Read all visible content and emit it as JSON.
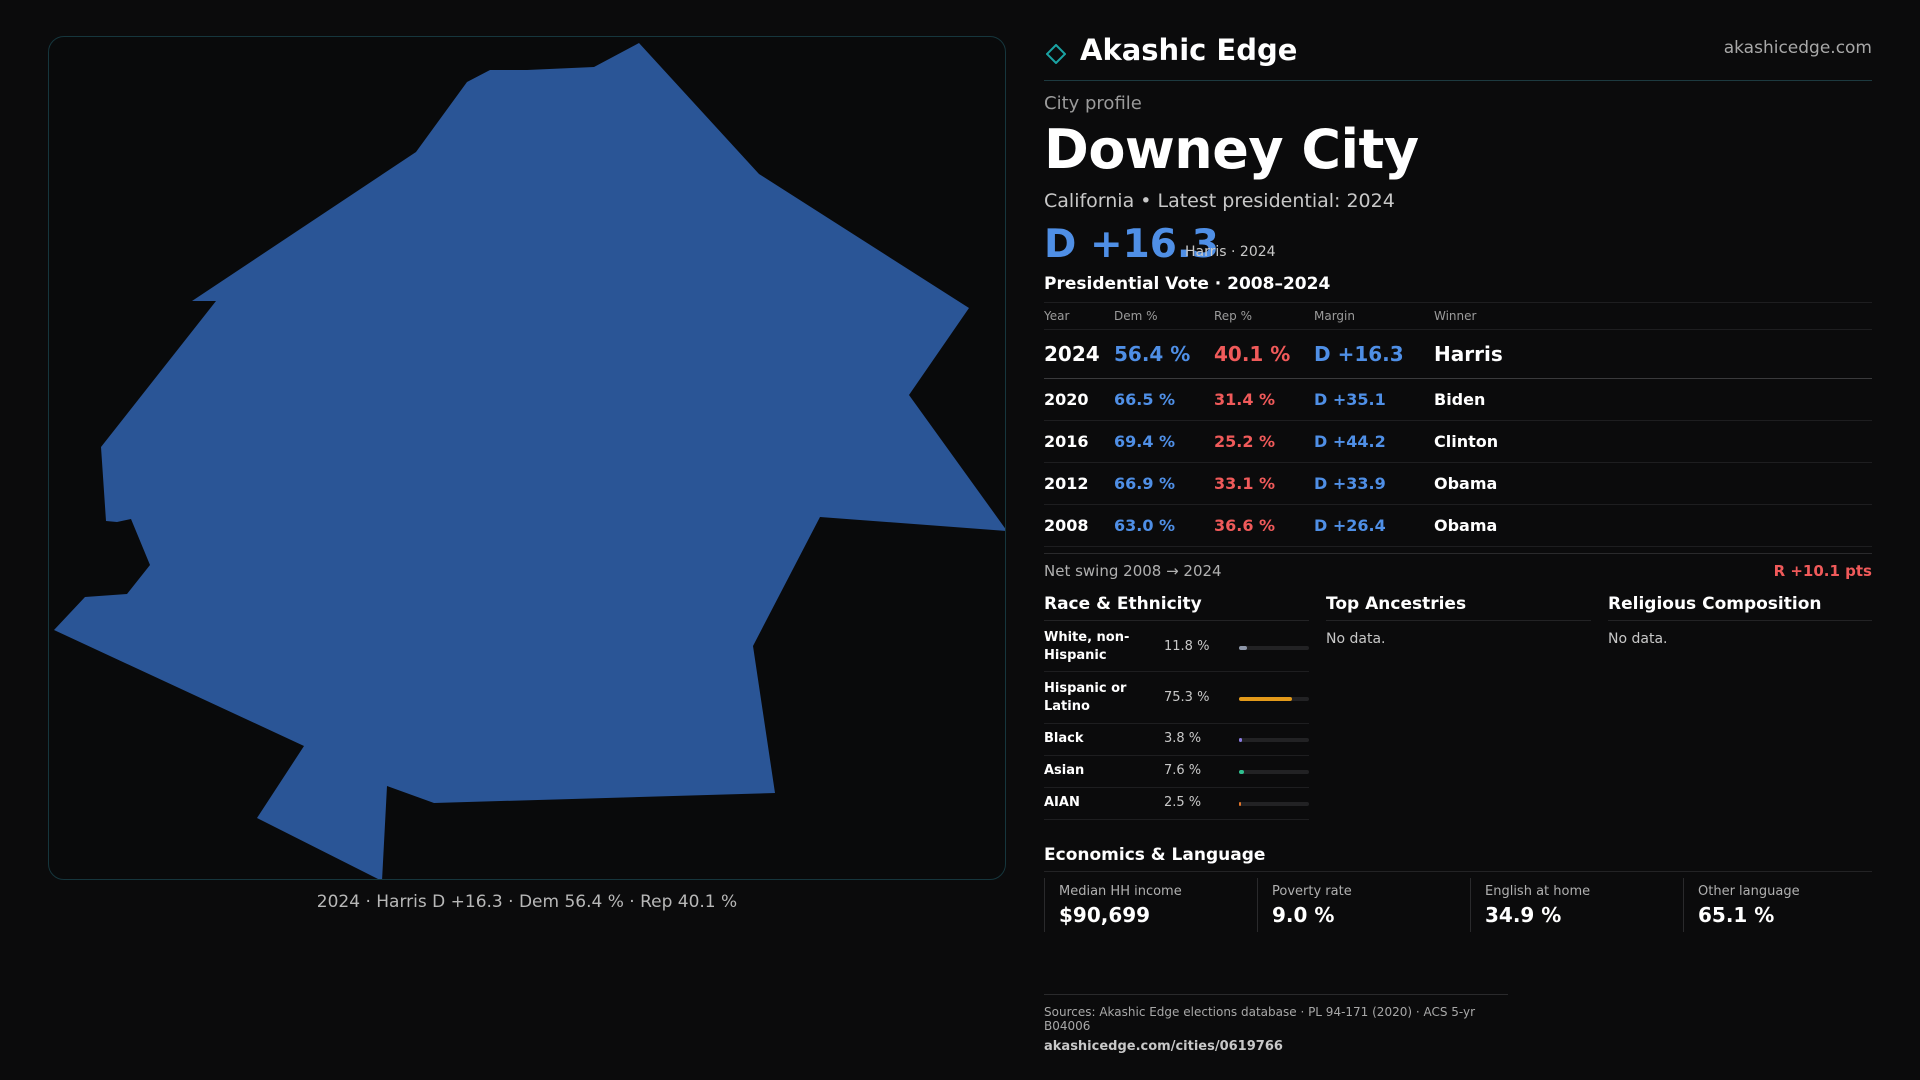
{
  "brand": {
    "name": "Akashic Edge",
    "site": "akashicedge.com"
  },
  "profile": {
    "kicker": "City profile",
    "title": "Downey City",
    "subtitle": "California • Latest presidential: 2024",
    "headline_margin": "D +16.3",
    "headline_note": "Harris · 2024"
  },
  "map": {
    "fill_color": "#2a5596",
    "caption": "2024 · Harris D +16.3 · Dem 56.4 % · Rep 40.1 %"
  },
  "votes": {
    "title": "Presidential Vote · 2008–2024",
    "headers": [
      "Year",
      "Dem %",
      "Rep %",
      "Margin",
      "Winner"
    ],
    "rows": [
      {
        "year": "2024",
        "dem": "56.4 %",
        "rep": "40.1 %",
        "margin": "D +16.3",
        "winner": "Harris"
      },
      {
        "year": "2020",
        "dem": "66.5 %",
        "rep": "31.4 %",
        "margin": "D +35.1",
        "winner": "Biden"
      },
      {
        "year": "2016",
        "dem": "69.4 %",
        "rep": "25.2 %",
        "margin": "D +44.2",
        "winner": "Clinton"
      },
      {
        "year": "2012",
        "dem": "66.9 %",
        "rep": "33.1 %",
        "margin": "D +33.9",
        "winner": "Obama"
      },
      {
        "year": "2008",
        "dem": "63.0 %",
        "rep": "36.6 %",
        "margin": "D +26.4",
        "winner": "Obama"
      }
    ],
    "dem_color": "#4f8fe6",
    "rep_color": "#f05a5a"
  },
  "swing": {
    "label": "Net swing 2008 → 2024",
    "value": "R +10.1 pts"
  },
  "race": {
    "title": "Race & Ethnicity",
    "rows": [
      {
        "label": "White, non-Hispanic",
        "value": "11.8 %",
        "pct": 11.8,
        "color": "#8d96a8"
      },
      {
        "label": "Hispanic or Latino",
        "value": "75.3 %",
        "pct": 75.3,
        "color": "#e39a1a"
      },
      {
        "label": "Black",
        "value": "3.8 %",
        "pct": 3.8,
        "color": "#8a7be0"
      },
      {
        "label": "Asian",
        "value": "7.6 %",
        "pct": 7.6,
        "color": "#2fbf8f"
      },
      {
        "label": "AIAN",
        "value": "2.5 %",
        "pct": 2.5,
        "color": "#e0742a"
      }
    ]
  },
  "ancestries": {
    "title": "Top Ancestries",
    "empty": "No data."
  },
  "religion": {
    "title": "Religious Composition",
    "empty": "No data."
  },
  "economics": {
    "title": "Economics & Language",
    "stats": [
      {
        "label": "Median HH income",
        "value": "$90,699"
      },
      {
        "label": "Poverty rate",
        "value": "9.0 %"
      },
      {
        "label": "English at home",
        "value": "34.9 %"
      },
      {
        "label": "Other language",
        "value": "65.1 %"
      }
    ]
  },
  "footer": {
    "sources": "Sources: Akashic Edge elections database · PL 94-171 (2020) · ACS 5-yr B04006",
    "url": "akashicedge.com/cities/0619766"
  }
}
